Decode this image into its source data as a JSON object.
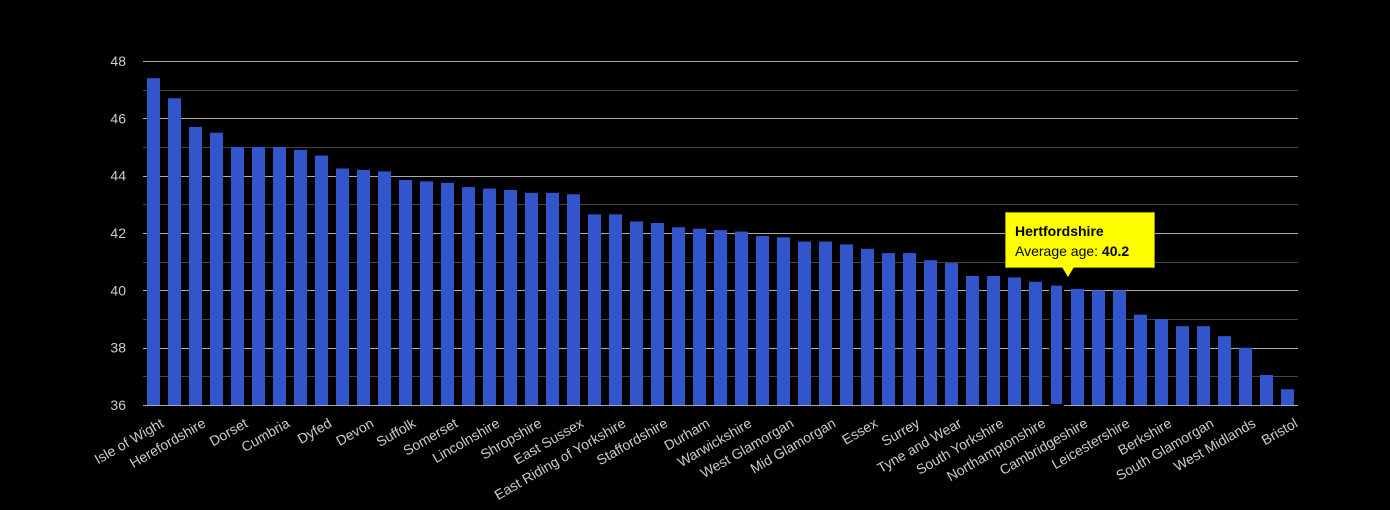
{
  "chart_data": {
    "type": "bar",
    "ylim": [
      36,
      48
    ],
    "yticks": [
      36,
      38,
      40,
      42,
      44,
      46,
      48
    ],
    "grid": true,
    "bar_color": "#3355cc",
    "highlight_index": 43,
    "categories": [
      "Isle of Wight",
      "",
      "Herefordshire",
      "",
      "Dorset",
      "",
      "Cumbria",
      "",
      "Dyfed",
      "",
      "Devon",
      "",
      "Suffolk",
      "",
      "Somerset",
      "",
      "Lincolnshire",
      "",
      "Shropshire",
      "",
      "East Sussex",
      "",
      "East Riding of Yorkshire",
      "",
      "Staffordshire",
      "",
      "Durham",
      "",
      "Warwickshire",
      "",
      "West Glamorgan",
      "",
      "Mid Glamorgan",
      "",
      "Essex",
      "",
      "Surrey",
      "",
      "Tyne and Wear",
      "",
      "South Yorkshire",
      "",
      "Northamptonshire",
      "",
      "Cambridgeshire",
      "",
      "Leicestershire",
      "",
      "Berkshire",
      "",
      "South Glamorgan",
      "",
      "West Midlands",
      "",
      "Bristol"
    ],
    "values": [
      47.4,
      46.7,
      45.7,
      45.5,
      45.0,
      45.0,
      45.0,
      44.9,
      44.7,
      44.25,
      44.2,
      44.15,
      43.85,
      43.8,
      43.75,
      43.6,
      43.55,
      43.5,
      43.4,
      43.4,
      43.35,
      42.65,
      42.65,
      42.4,
      42.35,
      42.2,
      42.15,
      42.1,
      42.05,
      41.9,
      41.85,
      41.7,
      41.7,
      41.6,
      41.45,
      41.3,
      41.3,
      41.05,
      40.95,
      40.5,
      40.5,
      40.45,
      40.3,
      40.2,
      40.05,
      40.0,
      40.0,
      39.15,
      39.0,
      38.75,
      38.75,
      38.4,
      38.0,
      37.05,
      36.55
    ]
  },
  "tooltip": {
    "title": "Hertfordshire",
    "label": "Average age:",
    "value": "40.2",
    "background": "#ffff00"
  }
}
